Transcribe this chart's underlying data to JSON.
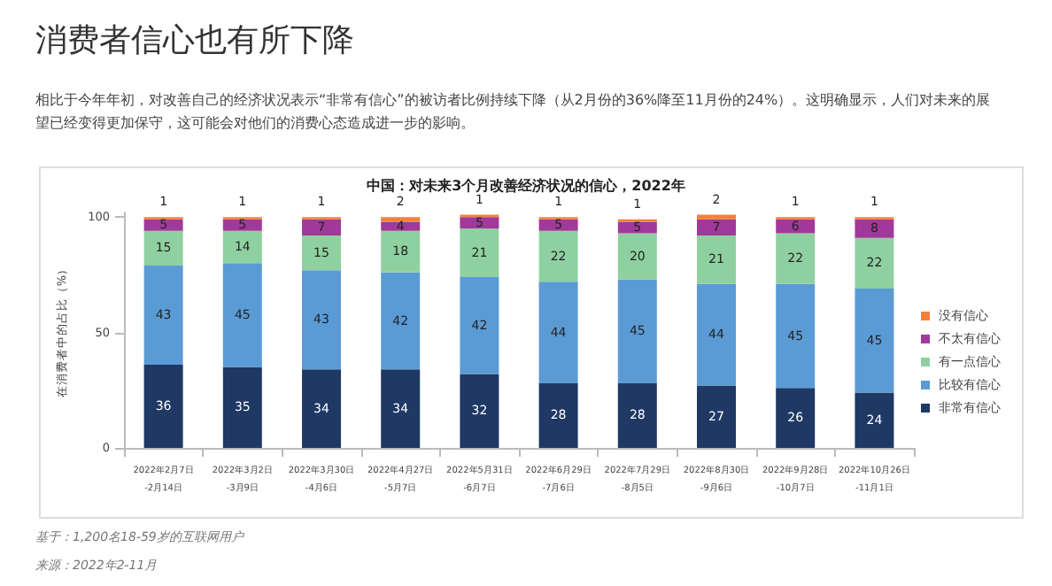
{
  "chart_data": {
    "type": "bar",
    "title": "消费者信心也有所下降",
    "subtitle": "相比于今年年初，对改善自己的经济状况表示“非常有信心”的被访者比例持续下降（从2月份的36%降至11月份的24%）。这明确显示，人们对未来的展望已经变得更加保守，这可能会对他们的消费心态造成进一步的影响。",
    "annotations": [
      "中国：对未来3个月改善经济状况的信心，2022年",
      "基于：1,200名18-59岁的互联网用户",
      "来源：2022年2-11月"
    ],
    "ylabel": "在消费者中的占比（%）",
    "categories": [
      "2022年2月7日\n-2月14日",
      "2022年3月2日\n-3月9日",
      "2022年3月30日\n-4月6日",
      "2022年4月27日\n-5月7日",
      "2022年5月31日\n-6月7日",
      "2022年6月29日\n-7月6日",
      "2022年7月29日\n-8月5日",
      "2022年8月30日\n-9月6日",
      "2022年9月28日\n-10月7日",
      "2022年10月26日\n-11月1日"
    ],
    "stacked": true,
    "data_labels": true,
    "legend": "right",
    "grid": false,
    "ylim": [
      0,
      102
    ],
    "yticks": [
      0,
      50,
      100
    ],
    "series": [
      {
        "name": "非常有信心",
        "color": "#1f3864",
        "values": [
          36,
          35,
          34,
          34,
          32,
          28,
          28,
          27,
          26,
          24
        ]
      },
      {
        "name": "比较有信心",
        "color": "#5b9bd5",
        "values": [
          43,
          45,
          43,
          42,
          42,
          44,
          45,
          44,
          45,
          45
        ]
      },
      {
        "name": "有一点信心",
        "color": "#8fd0a0",
        "values": [
          15,
          14,
          15,
          18,
          21,
          22,
          20,
          21,
          22,
          22
        ]
      },
      {
        "name": "不太有信心",
        "color": "#a0399a",
        "values": [
          5,
          5,
          7,
          4,
          5,
          5,
          5,
          7,
          6,
          8
        ]
      },
      {
        "name": "没有信心",
        "color": "#f4813a",
        "values": [
          1,
          1,
          1,
          2,
          1,
          1,
          1,
          2,
          1,
          1
        ]
      }
    ]
  }
}
